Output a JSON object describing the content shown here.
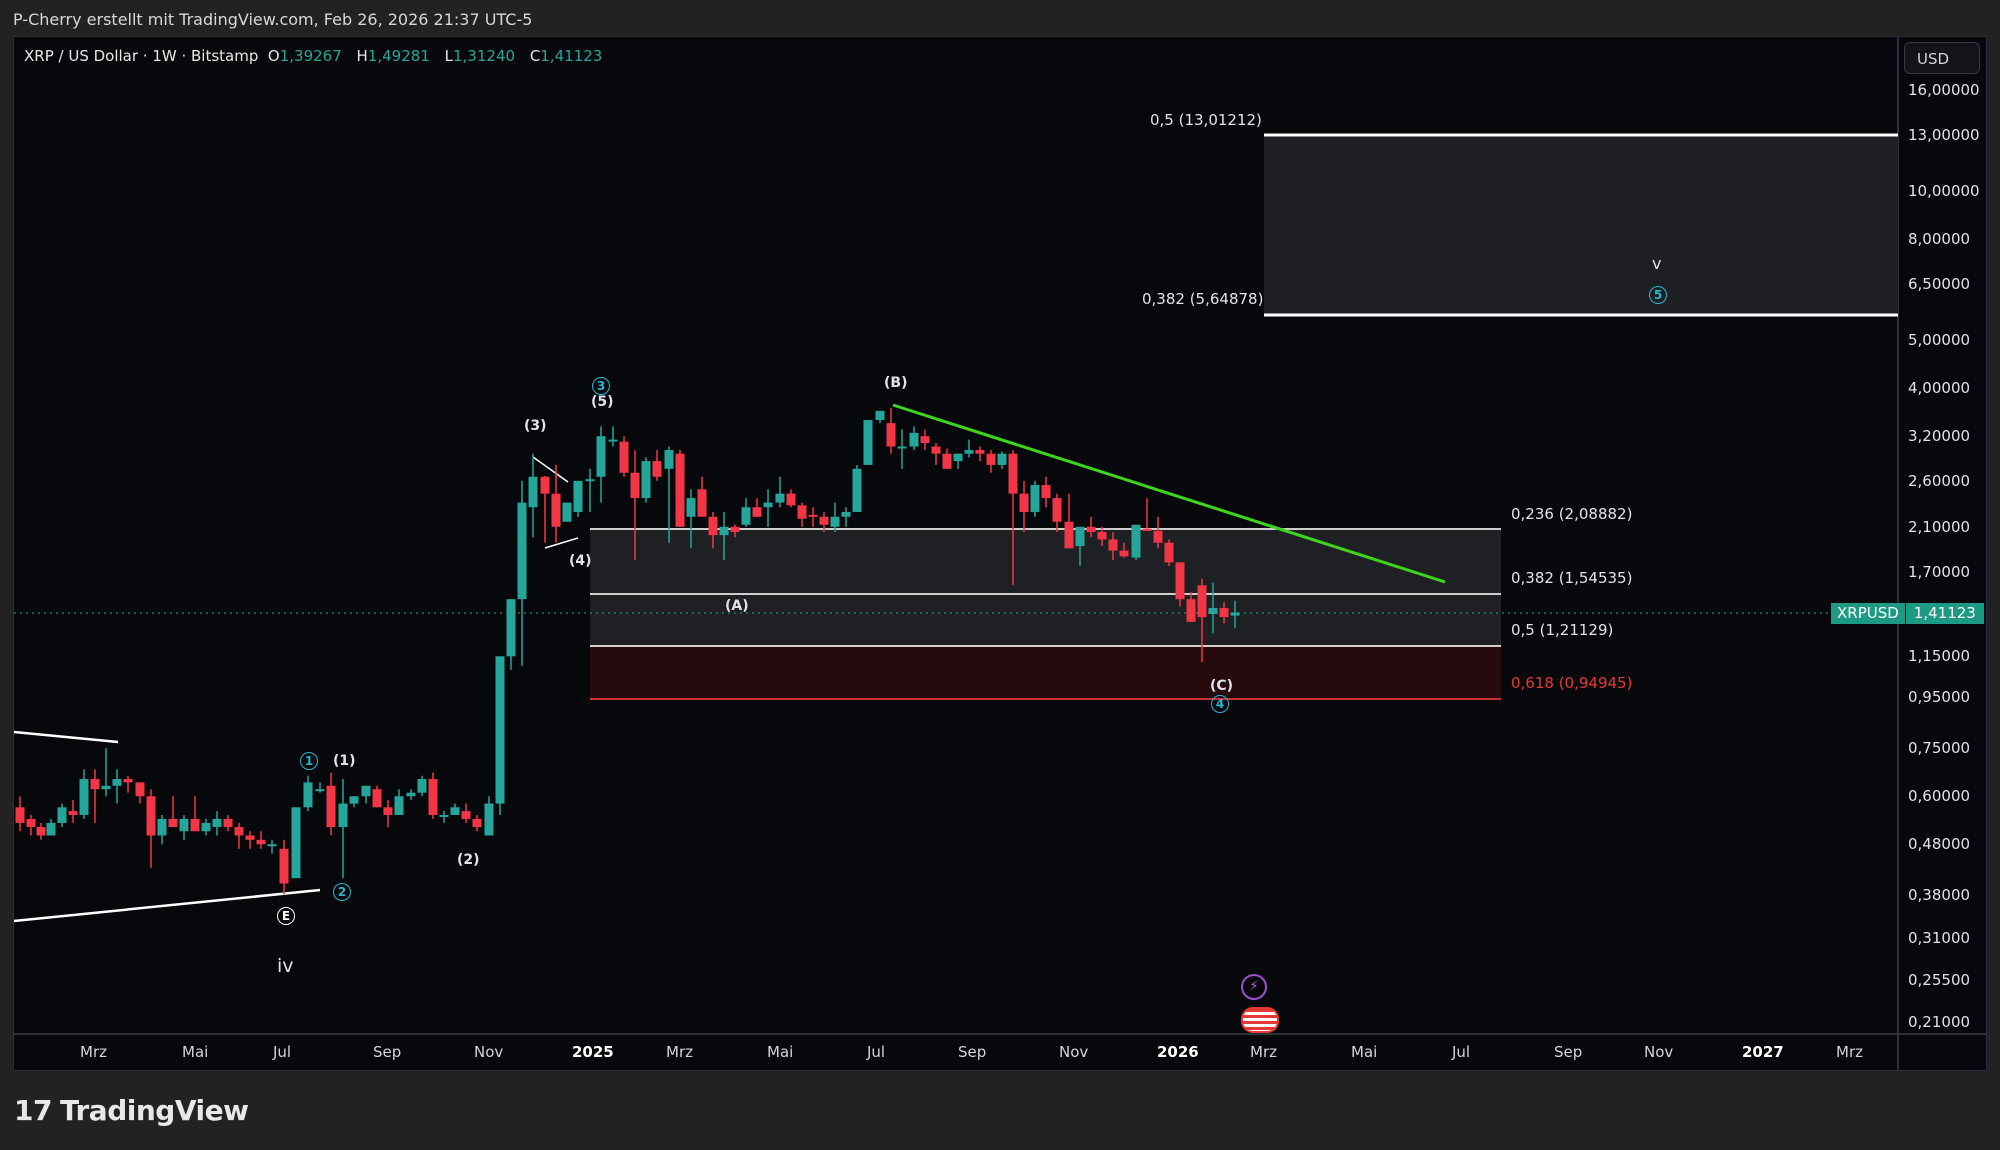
{
  "header": {
    "attribution": "P-Cherry erstellt mit TradingView.com, Feb 26, 2026 21:37 UTC-5"
  },
  "legend": {
    "symbol": "XRP / US Dollar · 1W · Bitstamp",
    "open_label": "O",
    "open": "1,39267",
    "high_label": "H",
    "high": "1,49281",
    "low_label": "L",
    "low": "1,31240",
    "close_label": "C",
    "close": "1,41123"
  },
  "price_axis": {
    "currency": "USD",
    "ticks": [
      "16,00000",
      "13,00000",
      "10,00000",
      "8,00000",
      "6,50000",
      "5,00000",
      "4,00000",
      "3,20000",
      "2,60000",
      "2,10000",
      "1,70000",
      "1,15000",
      "0,95000",
      "0,75000",
      "0,60000",
      "0,48000",
      "0,38000",
      "0,31000",
      "0,25500",
      "0,21000"
    ],
    "last_price_symbol": "XRPUSD",
    "last_price": "1,41123"
  },
  "time_axis": {
    "ticks": [
      "Mrz",
      "Mai",
      "Jul",
      "Sep",
      "Nov",
      "2025",
      "Mrz",
      "Mai",
      "Jul",
      "Sep",
      "Nov",
      "2026",
      "Mrz",
      "Mai",
      "Jul",
      "Sep",
      "Nov",
      "2027",
      "Mrz"
    ]
  },
  "fib_levels": [
    {
      "label": "0,5 (13,01212)"
    },
    {
      "label": "0,382 (5,64878)"
    },
    {
      "label": "0,236 (2,08882)"
    },
    {
      "label": "0,382 (1,54535)"
    },
    {
      "label": "0,5 (1,21129)"
    },
    {
      "label": "0,618 (0,94945)"
    }
  ],
  "wave_labels": {
    "w1_circle": "1",
    "w2_circle": "2",
    "w3_circle": "3",
    "w4_circle": "4",
    "w5_circle": "5",
    "p1": "(1)",
    "p2": "(2)",
    "p3": "(3)",
    "p4": "(4)",
    "p5": "(5)",
    "A": "(A)",
    "B": "(B)",
    "C": "(C)",
    "E": "E",
    "iv": "iv",
    "v": "v"
  },
  "branding": {
    "logo_text": "TradingView",
    "logo_mark": "17"
  },
  "colors": {
    "up": "#26a69a",
    "down": "#f23645",
    "trendline": "#3ed31f",
    "fib_red": "#e53935",
    "wave_circle": "#29b6d6"
  },
  "chart_data": {
    "type": "candlestick",
    "title": "XRP / US Dollar · 1W · Bitstamp",
    "xlabel": "",
    "ylabel": "USD",
    "y_scale": "log",
    "ylim": [
      0.21,
      16.0
    ],
    "x_range": [
      "2024-01",
      "2027-04"
    ],
    "last": {
      "open": 1.39267,
      "high": 1.49281,
      "low": 1.3124,
      "close": 1.41123
    },
    "fibonacci": [
      {
        "ratio": 0.5,
        "price": 13.01212
      },
      {
        "ratio": 0.382,
        "price": 5.64878
      },
      {
        "ratio": 0.236,
        "price": 2.08882
      },
      {
        "ratio": 0.382,
        "price": 1.54535
      },
      {
        "ratio": 0.5,
        "price": 1.21129
      },
      {
        "ratio": 0.618,
        "price": 0.94945
      }
    ],
    "annotations": [
      {
        "text": "iv",
        "x": "2024-07",
        "y": 0.28
      },
      {
        "text": "E",
        "x": "2024-07",
        "y": 0.38
      },
      {
        "text": "1 (circled)",
        "x": "2024-07",
        "y": 0.7
      },
      {
        "text": "(1)",
        "x": "2024-07",
        "y": 0.7
      },
      {
        "text": "2 (circled)",
        "x": "2024-08",
        "y": 0.4
      },
      {
        "text": "(2)",
        "x": "2024-10",
        "y": 0.45
      },
      {
        "text": "(3)",
        "x": "2024-12",
        "y": 3.0
      },
      {
        "text": "(4)",
        "x": "2024-12",
        "y": 1.8
      },
      {
        "text": "3 (circled) / (5)",
        "x": "2025-01",
        "y": 3.4
      },
      {
        "text": "(A)",
        "x": "2025-04",
        "y": 1.6
      },
      {
        "text": "(B)",
        "x": "2025-07",
        "y": 3.66
      },
      {
        "text": "(C) / 4 (circled)",
        "x": "2026-02",
        "y": 1.12
      },
      {
        "text": "v / 5 (circled)",
        "x": "2026-11",
        "y": 6.5
      }
    ],
    "trendline": {
      "from": {
        "x": "2025-07",
        "price": 3.66
      },
      "to": {
        "x": "2026-06",
        "price": 1.43
      },
      "color": "#3ed31f"
    },
    "approx_weekly_closes_sample": {
      "2024-03": 0.62,
      "2024-05": 0.52,
      "2024-07": 0.45,
      "2024-08": 0.6,
      "2024-10": 0.53,
      "2024-11": 1.1,
      "2024-12": 2.4,
      "2025-01": 3.1,
      "2025-03": 2.3,
      "2025-04": 2.0,
      "2025-06": 2.2,
      "2025-07": 3.5,
      "2025-09": 2.9,
      "2025-10": 2.4,
      "2025-12": 1.9,
      "2026-01": 2.0,
      "2026-02": 1.41
    }
  }
}
